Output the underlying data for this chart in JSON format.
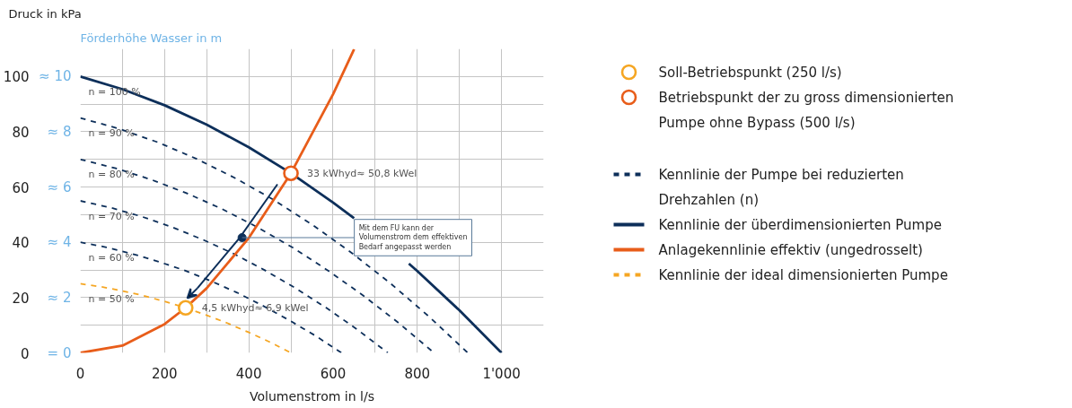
{
  "chart_data": {
    "type": "line",
    "title": "Druck in  kPa",
    "subtitle": "Förderhöhe Wasser in m",
    "xlabel": "Volumenstrom in l/s",
    "xlim": [
      0,
      1100
    ],
    "ylim": [
      0,
      110
    ],
    "xticks": [
      0,
      200,
      400,
      600,
      800,
      {
        "value": 1000,
        "label": "1'000"
      }
    ],
    "yticks": [
      0,
      20,
      40,
      60,
      80,
      100
    ],
    "y2lim": [
      0,
      11
    ],
    "y2ticks": [
      {
        "value": 0,
        "label": "= 0"
      },
      {
        "value": 2,
        "label": "≈ 2"
      },
      {
        "value": 4,
        "label": "≈ 4"
      },
      {
        "value": 6,
        "label": "≈ 6"
      },
      {
        "value": 8,
        "label": "≈ 8"
      },
      {
        "value": 10,
        "label": "≈ 10"
      }
    ],
    "grid": true,
    "legend": "right",
    "series": [
      {
        "name": "Soll-Betriebspunkt (250 l/s)",
        "type": "scatter",
        "marker": "circle",
        "color": "#f5a623",
        "x": [
          250
        ],
        "values": [
          16.3
        ]
      },
      {
        "name": "Betriebspunkt der zu gross dimensionierten Pumpe ohne Bypass (500 l/s)",
        "type": "scatter",
        "marker": "circle",
        "color": "#e85d1a",
        "x": [
          500
        ],
        "values": [
          65
        ]
      },
      {
        "name": "Kennlinie der Pumpe bei reduzierten Drehzahlen (n)",
        "color": "#0d2f5a",
        "line_style": "dashed",
        "x": [
          0,
          92,
          184,
          276,
          368,
          460,
          552,
          644,
          736,
          828,
          920
        ],
        "values": [
          85,
          81.1,
          76.2,
          70.2,
          63.2,
          55.3,
          46.2,
          36.2,
          25.2,
          13.1,
          0
        ]
      },
      {
        "color": "#0d2f5a",
        "line_style": "dashed",
        "x": [
          0,
          84,
          168,
          252,
          336,
          420,
          504,
          588,
          672,
          756,
          840
        ],
        "values": [
          70,
          66.8,
          62.7,
          57.8,
          52.1,
          45.5,
          38.1,
          29.8,
          20.7,
          10.8,
          0
        ]
      },
      {
        "color": "#0d2f5a",
        "line_style": "dashed",
        "x": [
          0,
          73,
          146,
          219,
          292,
          365,
          438,
          511,
          584,
          657,
          730
        ],
        "values": [
          55,
          52.5,
          49.3,
          45.4,
          40.9,
          35.8,
          29.9,
          23.4,
          16.3,
          8.5,
          0
        ]
      },
      {
        "color": "#0d2f5a",
        "line_style": "dashed",
        "x": [
          0,
          62,
          124,
          186,
          248,
          310,
          372,
          434,
          496,
          558,
          620
        ],
        "values": [
          40,
          38.2,
          35.8,
          33,
          29.8,
          26,
          21.8,
          17,
          11.8,
          6.2,
          0
        ]
      },
      {
        "name": "Kennlinie der überdimensionierten Pumpe",
        "color": "#0d2f5a",
        "line_style": "solid",
        "x": [
          0,
          100,
          200,
          300,
          400,
          500,
          600,
          650,
          700,
          780,
          800,
          900,
          1000
        ],
        "values": [
          100,
          95.4,
          89.6,
          82.6,
          74.4,
          65,
          54.4,
          48.7,
          null,
          32.3,
          29.6,
          15.4,
          0
        ]
      },
      {
        "name": "Anlagekennlinie effektiv (ungedrosselt)",
        "color": "#e85d1a",
        "line_style": "solid",
        "x": [
          0,
          100,
          200,
          250,
          300,
          400,
          500,
          600,
          650
        ],
        "values": [
          0,
          2.6,
          10.4,
          16.3,
          23.4,
          41.6,
          65,
          93.6,
          109.9
        ]
      },
      {
        "name": "Kennlinie der ideal dimensionierten Pumpe",
        "color": "#f5a623",
        "line_style": "dashed",
        "x": [
          0,
          50,
          100,
          150,
          200,
          250,
          300,
          350,
          400,
          450,
          500
        ],
        "values": [
          25,
          23.9,
          22.4,
          20.7,
          18.6,
          16.3,
          13.6,
          10.7,
          7.4,
          3.9,
          0
        ]
      }
    ],
    "annotations": [
      {
        "text": "n = 100 %",
        "x": 0,
        "y": 100
      },
      {
        "text": "n = 90 %",
        "x": 0,
        "y": 85
      },
      {
        "text": "n = 80 %",
        "x": 0,
        "y": 70
      },
      {
        "text": "n = 70 %",
        "x": 0,
        "y": 55
      },
      {
        "text": "n = 60 %",
        "x": 0,
        "y": 40
      },
      {
        "text": "n = 50 %",
        "x": 0,
        "y": 25
      },
      {
        "text": "33 kWhyd≈ 50,8 kWel",
        "x": 500,
        "y": 65
      },
      {
        "text": "4,5 kWhyd≈ 6,9 kWel",
        "x": 250,
        "y": 16.3
      },
      {
        "text": "Mit dem FU kann der Volumenstrom dem effektiven Bedarf angepasst werden",
        "x": 384,
        "y": 41.7
      }
    ]
  }
}
